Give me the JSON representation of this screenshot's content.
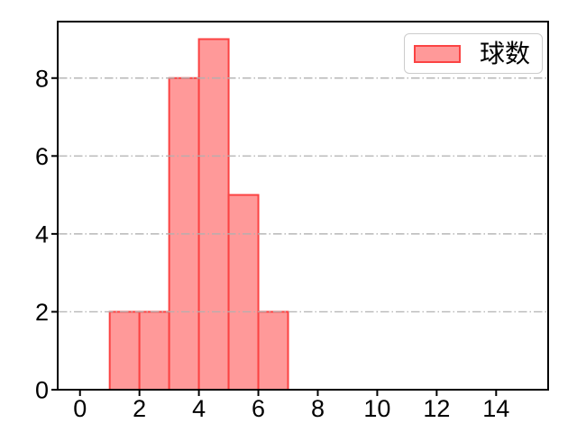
{
  "figure": {
    "background": "#ffffff"
  },
  "chart_data": {
    "type": "bar",
    "subtype": "histogram",
    "title": "",
    "xlabel": "",
    "ylabel": "",
    "bin_edges": [
      1,
      2,
      3,
      4,
      5,
      6,
      7
    ],
    "counts": [
      2,
      2,
      8,
      9,
      5,
      2
    ],
    "x_ticks": [
      0,
      2,
      4,
      6,
      8,
      10,
      12,
      14
    ],
    "y_ticks": [
      0,
      2,
      4,
      6,
      8
    ],
    "xlim": [
      -0.75,
      15.75
    ],
    "ylim": [
      0,
      9.45
    ],
    "grid": {
      "axis": "y",
      "style": "dash-dot",
      "on": true,
      "above_bars": true
    },
    "legend": {
      "label": "球数",
      "position": "upper right"
    },
    "colors": {
      "bar_fill": "#ff9999",
      "bar_edge": "#fb4343",
      "grid": "#b0b0b0",
      "spine": "#000000",
      "tick": "#000000",
      "tick_label": "#000000",
      "legend_border": "#cccccc",
      "legend_bg": "#ffffff",
      "legend_text": "#000000"
    }
  }
}
